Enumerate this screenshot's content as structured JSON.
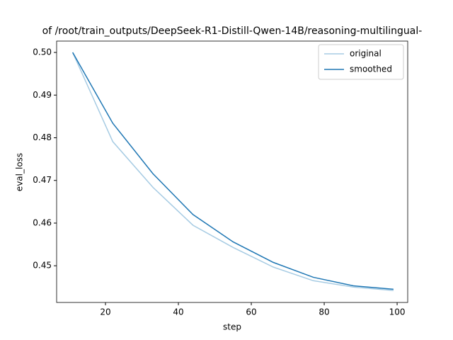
{
  "chart_data": {
    "type": "line",
    "title": "of /root/train_outputs/DeepSeek-R1-Distill-Qwen-14B/reasoning-multilingual-",
    "x_label": "step",
    "y_label": "eval_loss",
    "x": [
      11,
      22,
      33,
      44,
      55,
      66,
      77,
      88,
      99
    ],
    "series": [
      {
        "name": "original",
        "color": "#a6cbe3",
        "values": [
          0.5,
          0.4791,
          0.4684,
          0.4595,
          0.4543,
          0.4497,
          0.4465,
          0.445,
          0.4442
        ]
      },
      {
        "name": "smoothed",
        "color": "#1f77b4",
        "values": [
          0.5,
          0.4834,
          0.4716,
          0.462,
          0.4556,
          0.4508,
          0.4473,
          0.4453,
          0.4445
        ]
      }
    ],
    "xlim": [
      6.6,
      102.9
    ],
    "xticks": [
      20,
      40,
      60,
      80,
      100
    ],
    "ylim": [
      0.4414,
      0.50266
    ],
    "yticks": [
      0.45,
      0.46,
      0.47,
      0.48,
      0.49,
      {
        "value": 0.5,
        "label": "0.50"
      }
    ],
    "legend": "upper right"
  }
}
